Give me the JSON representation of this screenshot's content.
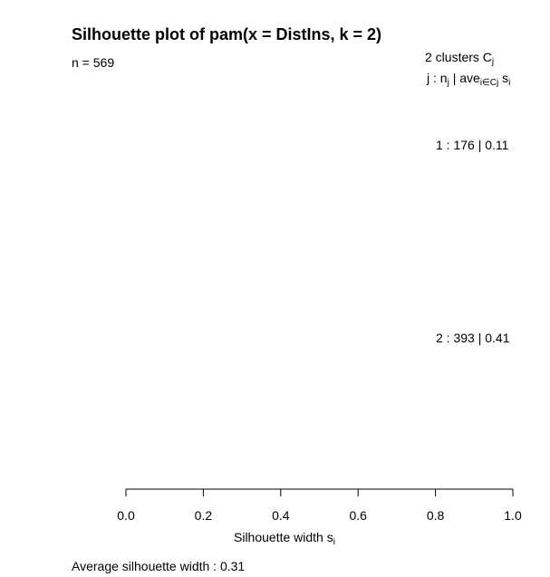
{
  "chart_data": {
    "type": "bar",
    "title": "Silhouette plot of pam(x = DistIns, k = 2)",
    "n_label": "n = 569",
    "legend_header": {
      "line1_main": "2  clusters  C",
      "line1_sub": "j",
      "line2_a": "j :  n",
      "line2_sub_j": "j",
      "line2_b": " | ave",
      "line2_sub_i": "i∈Cj",
      "line2_c": "  s",
      "line2_sub_s": "i"
    },
    "clusters": [
      {
        "label": "1 :   176  |  0.11",
        "id": 1,
        "size": 176,
        "avg_width": 0.11
      },
      {
        "label": "2 :   393  |  0.41",
        "id": 2,
        "size": 393,
        "avg_width": 0.41
      }
    ],
    "xlim": [
      0,
      1
    ],
    "x_ticks": [
      0,
      0.2,
      0.4,
      0.6,
      0.8,
      1.0
    ],
    "x_tick_labels": [
      "0.0",
      "0.2",
      "0.4",
      "0.6",
      "0.8",
      "1.0"
    ],
    "xlabel_main": "Silhouette width s",
    "xlabel_sub": "i",
    "average_label": "Average silhouette width :  0.31",
    "average_width": 0.31
  }
}
